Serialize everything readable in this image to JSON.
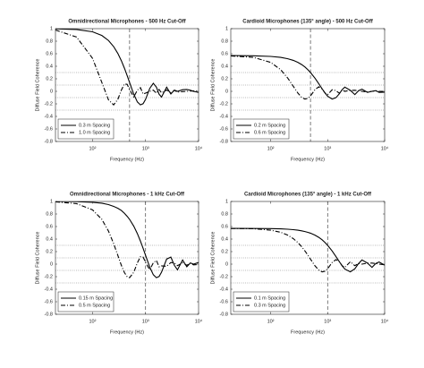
{
  "chart_data": [
    {
      "type": "line",
      "title": "Omnidirectional Microphones - 500 Hz Cut-Off",
      "xlabel": "Frequency (Hz)",
      "ylabel": "Diffuse Field Coherence",
      "log_x": true,
      "xlim": [
        20,
        10000
      ],
      "xticks": [
        {
          "value": 100,
          "label": "10²"
        },
        {
          "value": 1000,
          "label": "10³"
        },
        {
          "value": 10000,
          "label": "10⁴"
        }
      ],
      "ylim": [
        -0.8,
        1
      ],
      "yticks": [
        -0.8,
        -0.6,
        -0.4,
        -0.2,
        0,
        0.2,
        0.4,
        0.6,
        0.8,
        1
      ],
      "hlines": [
        0.3,
        0.1,
        -0.1,
        -0.3
      ],
      "vline": 500,
      "legend": "lower left",
      "x": [
        20,
        50,
        100,
        150,
        200,
        250,
        300,
        350,
        400,
        450,
        500,
        600,
        700,
        800,
        900,
        1000,
        1200,
        1400,
        1600,
        1800,
        2000,
        2500,
        3000,
        3500,
        4000,
        5000,
        6000,
        7000,
        8000,
        10000
      ],
      "series": [
        {
          "name": "0.3 m Spacing",
          "color": "#000000",
          "dash": "solid",
          "values": [
            0.998,
            0.987,
            0.95,
            0.891,
            0.811,
            0.714,
            0.605,
            0.488,
            0.368,
            0.251,
            0.14,
            -0.047,
            -0.169,
            -0.216,
            -0.197,
            -0.129,
            0.047,
            0.128,
            0.067,
            -0.046,
            -0.091,
            0.067,
            -0.043,
            0.02,
            0.0,
            0.026,
            0.03,
            0.018,
            0.0,
            -0.018
          ]
        },
        {
          "name": "1.0 m Spacing",
          "color": "#000000",
          "dash": "dashdot",
          "values": [
            0.978,
            0.866,
            0.527,
            0.14,
            -0.136,
            -0.216,
            -0.129,
            0.02,
            0.118,
            0.112,
            0.028,
            -0.091,
            0.02,
            0.059,
            -0.043,
            -0.028,
            0.0,
            0.019,
            -0.03,
            0.03,
            -0.024,
            0.021,
            -0.018,
            0.015,
            -0.012,
            -0.005,
            0.0,
            0.004,
            0.006,
            0.005
          ]
        }
      ]
    },
    {
      "type": "line",
      "title": "Cardioid Microphones (135° angle) - 500 Hz Cut-Off",
      "xlabel": "Frequency (Hz)",
      "ylabel": "Diffuse Field Coherence",
      "log_x": true,
      "xlim": [
        20,
        10000
      ],
      "xticks": [
        {
          "value": 100,
          "label": "10²"
        },
        {
          "value": 1000,
          "label": "10³"
        },
        {
          "value": 10000,
          "label": "10⁴"
        }
      ],
      "ylim": [
        -0.8,
        1
      ],
      "yticks": [
        -0.8,
        -0.6,
        -0.4,
        -0.2,
        0,
        0.2,
        0.4,
        0.6,
        0.8,
        1
      ],
      "hlines": [
        0.3,
        0.1,
        -0.1,
        -0.3
      ],
      "vline": 500,
      "legend": "lower left",
      "x": [
        20,
        50,
        100,
        150,
        200,
        250,
        300,
        350,
        400,
        450,
        500,
        600,
        700,
        800,
        900,
        1000,
        1200,
        1400,
        1600,
        1800,
        2000,
        2500,
        3000,
        3500,
        4000,
        5000,
        6000,
        7000,
        8000,
        10000
      ],
      "series": [
        {
          "name": "0.2 m Spacing",
          "color": "#000000",
          "dash": "solid",
          "values": [
            0.57,
            0.567,
            0.557,
            0.542,
            0.52,
            0.494,
            0.462,
            0.427,
            0.388,
            0.345,
            0.3,
            0.21,
            0.121,
            0.041,
            -0.027,
            -0.078,
            -0.123,
            -0.101,
            -0.04,
            0.027,
            0.067,
            0.016,
            -0.052,
            0.011,
            0.034,
            -0.016,
            0.0,
            0.011,
            -0.017,
            -0.014
          ]
        },
        {
          "name": "0.6 m Spacing",
          "color": "#000000",
          "dash": "dashdot",
          "values": [
            0.565,
            0.542,
            0.462,
            0.345,
            0.21,
            0.08,
            -0.027,
            -0.096,
            -0.123,
            -0.112,
            -0.074,
            0.027,
            0.073,
            0.038,
            -0.026,
            -0.052,
            0.025,
            0.012,
            -0.031,
            0.023,
            0.0,
            0.015,
            0.017,
            0.01,
            0.0,
            -0.01,
            0.0,
            0.007,
            0.0,
            0.0
          ]
        }
      ]
    },
    {
      "type": "line",
      "title": "Omnidirectional Microphones - 1 kHz Cut-Off",
      "xlabel": "Frequency (Hz)",
      "ylabel": "Diffuse Field Coherence",
      "log_x": true,
      "xlim": [
        20,
        10000
      ],
      "xticks": [
        {
          "value": 100,
          "label": "10²"
        },
        {
          "value": 1000,
          "label": "10³"
        },
        {
          "value": 10000,
          "label": "10⁴"
        }
      ],
      "ylim": [
        -0.8,
        1
      ],
      "yticks": [
        -0.8,
        -0.6,
        -0.4,
        -0.2,
        0,
        0.2,
        0.4,
        0.6,
        0.8,
        1
      ],
      "hlines": [
        0.3,
        0.1,
        -0.1,
        -0.3
      ],
      "vline": 1000,
      "legend": "lower left",
      "x": [
        20,
        50,
        100,
        150,
        200,
        250,
        300,
        350,
        400,
        450,
        500,
        600,
        700,
        800,
        900,
        1000,
        1200,
        1400,
        1600,
        1800,
        2000,
        2500,
        3000,
        3500,
        4000,
        5000,
        6000,
        7000,
        8000,
        10000
      ],
      "series": [
        {
          "name": "0.15 m Spacing",
          "color": "#000000",
          "dash": "solid",
          "values": [
            0.999,
            0.997,
            0.987,
            0.972,
            0.95,
            0.922,
            0.891,
            0.856,
            0.811,
            0.763,
            0.714,
            0.605,
            0.488,
            0.368,
            0.251,
            0.14,
            -0.047,
            -0.169,
            -0.216,
            -0.197,
            -0.129,
            0.081,
            0.112,
            -0.02,
            -0.091,
            0.067,
            -0.043,
            0.02,
            0.0,
            0.026
          ]
        },
        {
          "name": "0.5 m Spacing",
          "color": "#000000",
          "dash": "dashdot",
          "values": [
            0.994,
            0.965,
            0.866,
            0.714,
            0.527,
            0.328,
            0.14,
            -0.02,
            -0.136,
            -0.201,
            -0.216,
            -0.129,
            0.02,
            0.118,
            0.112,
            0.028,
            -0.091,
            0.02,
            0.059,
            -0.043,
            -0.028,
            -0.034,
            0.026,
            0.019,
            -0.024,
            0.021,
            -0.018,
            0.015,
            -0.012,
            -0.005
          ]
        }
      ]
    },
    {
      "type": "line",
      "title": "Cardioid Microphones (135° angle) - 1 kHz Cut-Off",
      "xlabel": "Frequency (Hz)",
      "ylabel": "Diffuse Field Coherence",
      "log_x": true,
      "xlim": [
        20,
        10000
      ],
      "xticks": [
        {
          "value": 100,
          "label": "10²"
        },
        {
          "value": 1000,
          "label": "10³"
        },
        {
          "value": 10000,
          "label": "10⁴"
        }
      ],
      "ylim": [
        -0.8,
        1
      ],
      "yticks": [
        -0.8,
        -0.6,
        -0.4,
        -0.2,
        0,
        0.2,
        0.4,
        0.6,
        0.8,
        1
      ],
      "hlines": [
        0.3,
        0.1,
        -0.1,
        -0.3
      ],
      "vline": 1000,
      "legend": "lower left",
      "x": [
        20,
        50,
        100,
        150,
        200,
        250,
        300,
        350,
        400,
        450,
        500,
        600,
        700,
        800,
        900,
        1000,
        1200,
        1400,
        1600,
        1800,
        2000,
        2500,
        3000,
        3500,
        4000,
        5000,
        6000,
        7000,
        8000,
        10000
      ],
      "series": [
        {
          "name": "0.1 m Spacing",
          "color": "#000000",
          "dash": "solid",
          "values": [
            0.57,
            0.569,
            0.567,
            0.563,
            0.557,
            0.55,
            0.542,
            0.531,
            0.52,
            0.507,
            0.494,
            0.462,
            0.427,
            0.388,
            0.345,
            0.3,
            0.21,
            0.121,
            0.041,
            -0.027,
            -0.078,
            -0.123,
            -0.074,
            0.011,
            0.067,
            0.016,
            -0.052,
            0.011,
            0.034,
            -0.016
          ]
        },
        {
          "name": "0.3 m Spacing",
          "color": "#000000",
          "dash": "dashdot",
          "values": [
            0.569,
            0.565,
            0.542,
            0.508,
            0.462,
            0.407,
            0.345,
            0.278,
            0.21,
            0.143,
            0.08,
            -0.027,
            -0.096,
            -0.123,
            -0.112,
            -0.074,
            0.027,
            0.073,
            0.038,
            -0.026,
            -0.052,
            0.038,
            -0.025,
            0.011,
            0.0,
            0.015,
            0.017,
            0.01,
            0.0,
            -0.01
          ]
        }
      ]
    }
  ]
}
